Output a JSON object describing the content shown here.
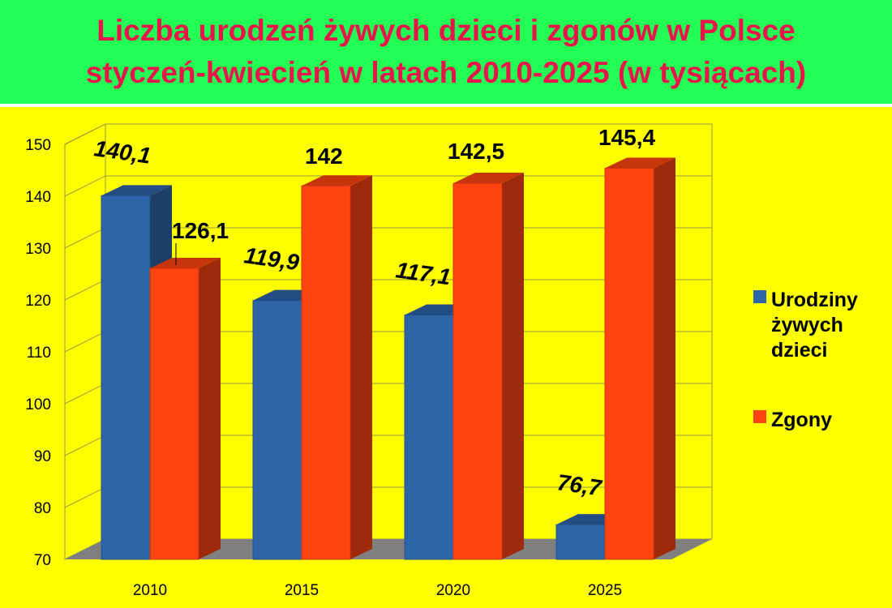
{
  "title": {
    "line1": "Liczba urodzeń żywych dzieci i zgonów w Polsce",
    "line2": "styczeń-kwiecień w latach 2010-2025 (w tysiącach)"
  },
  "colors": {
    "title_band": "#22ff55",
    "title_text": "#e8144a",
    "background": "#ffff00",
    "births": "#2e64a8",
    "deaths": "#ff4411"
  },
  "chart_data": {
    "type": "bar",
    "three_d": true,
    "categories": [
      "2010",
      "2015",
      "2020",
      "2025"
    ],
    "series": [
      {
        "name": "Urodziny żywych dzieci",
        "values": [
          140.1,
          119.9,
          117.1,
          76.7
        ],
        "labels": [
          "140,1",
          "119,9",
          "117,1",
          "76,7"
        ],
        "label_style": "italic"
      },
      {
        "name": "Zgony",
        "values": [
          126.1,
          142,
          142.5,
          145.4
        ],
        "labels": [
          "126,1",
          "142",
          "142,5",
          "145,4"
        ],
        "label_style": "normal"
      }
    ],
    "yticks": [
      "70",
      "80",
      "90",
      "100",
      "110",
      "120",
      "130",
      "140",
      "150"
    ],
    "ylim": [
      70,
      150
    ],
    "grid": true,
    "legend": {
      "position": "right",
      "items": [
        {
          "lines": [
            "Urodziny",
            "żywych",
            "dzieci"
          ]
        },
        {
          "lines": [
            "Zgony"
          ]
        }
      ]
    }
  }
}
